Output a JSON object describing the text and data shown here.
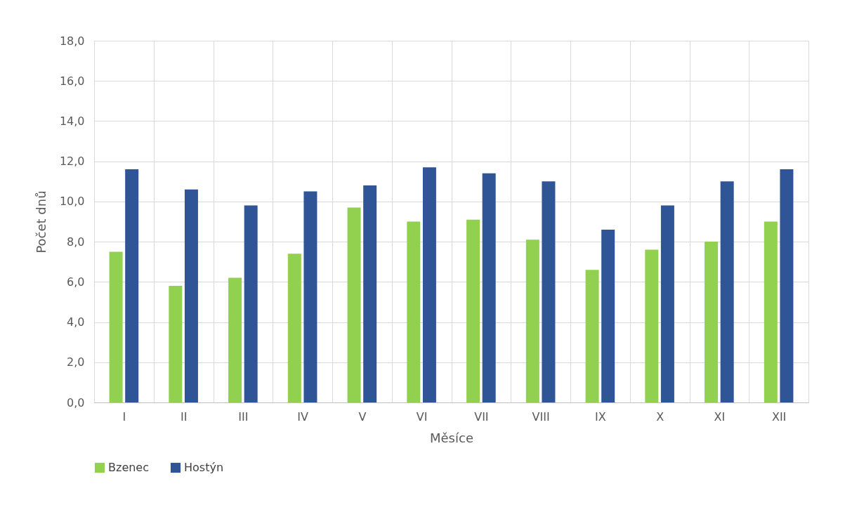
{
  "chart_data": {
    "type": "bar",
    "xlabel": "Měsíce",
    "ylabel": "Počet dnů",
    "categories": [
      "I",
      "II",
      "III",
      "IV",
      "V",
      "VI",
      "VII",
      "VIII",
      "IX",
      "X",
      "XI",
      "XII"
    ],
    "series": [
      {
        "name": "Bzenec",
        "color": "#92d050",
        "values": [
          7.5,
          5.8,
          6.2,
          7.4,
          9.7,
          9.0,
          9.1,
          8.1,
          6.6,
          7.6,
          8.0,
          9.0
        ]
      },
      {
        "name": "Hostýn",
        "color": "#2f5597",
        "values": [
          11.6,
          10.6,
          9.8,
          10.5,
          10.8,
          11.7,
          11.4,
          11.0,
          8.6,
          9.8,
          11.0,
          11.6
        ]
      }
    ],
    "ylim": [
      0,
      18
    ],
    "yticks": [
      {
        "value": 0,
        "label": "0,0"
      },
      {
        "value": 2,
        "label": "2,0"
      },
      {
        "value": 4,
        "label": "4,0"
      },
      {
        "value": 6,
        "label": "6,0"
      },
      {
        "value": 8,
        "label": "8,0"
      },
      {
        "value": 10,
        "label": "10,0"
      },
      {
        "value": 12,
        "label": "12,0"
      },
      {
        "value": 14,
        "label": "14,0"
      },
      {
        "value": 16,
        "label": "16,0"
      },
      {
        "value": 18,
        "label": "18,0"
      }
    ],
    "grid": true,
    "legend": "bottom"
  }
}
